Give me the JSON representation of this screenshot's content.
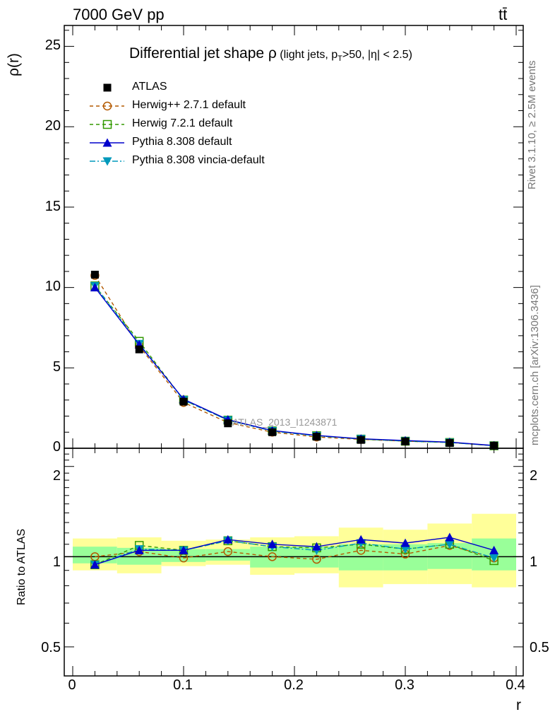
{
  "header": {
    "energy": "7000 GeV pp",
    "process": "tt̄"
  },
  "side_text": {
    "rivet": "Rivet 3.1.10, ≥ 2.5M events",
    "site": "mcplots.cern.ch [arXiv:1306.3436]"
  },
  "chart_data": [
    {
      "type": "line",
      "panel": "main",
      "title_main": "Differential jet shape ρ",
      "title_sub": "(light jets, p",
      "title_sub_T": "T",
      "title_sub_rest": ">50, |η| < 2.5)",
      "ylabel": "ρ(r)",
      "watermark": "ATLAS_2013_I1243871",
      "xlim": [
        0,
        0.4
      ],
      "ylim": [
        0,
        26.3
      ],
      "yticks": [
        0,
        5,
        10,
        15,
        20,
        25
      ],
      "x": [
        0.02,
        0.06,
        0.1,
        0.14,
        0.18,
        0.22,
        0.26,
        0.3,
        0.34,
        0.38
      ],
      "series": [
        {
          "name": "ATLAS",
          "marker": "square-filled",
          "color": "#000000",
          "line": "none",
          "values": [
            10.8,
            6.15,
            2.9,
            1.55,
            1.0,
            0.72,
            0.52,
            0.43,
            0.33,
            0.16
          ]
        },
        {
          "name": "Herwig++ 2.7.1 default",
          "marker": "circle-open",
          "color": "#b35900",
          "line": "dashed",
          "values": [
            10.75,
            6.35,
            2.85,
            1.6,
            1.0,
            0.7,
            0.55,
            0.44,
            0.37,
            0.16
          ]
        },
        {
          "name": "Herwig 7.2.1 default",
          "marker": "square-open",
          "color": "#339900",
          "line": "dashed",
          "values": [
            10.1,
            6.65,
            3.0,
            1.75,
            1.08,
            0.78,
            0.57,
            0.44,
            0.36,
            0.155
          ]
        },
        {
          "name": "Pythia 8.308 default",
          "marker": "triangle-up",
          "color": "#0000cc",
          "line": "solid",
          "values": [
            10.0,
            6.45,
            3.05,
            1.78,
            1.1,
            0.8,
            0.59,
            0.48,
            0.38,
            0.17
          ]
        },
        {
          "name": "Pythia 8.308 vincia-default",
          "marker": "triangle-down",
          "color": "#0099bb",
          "line": "dashdot",
          "values": [
            10.1,
            6.5,
            3.0,
            1.75,
            1.07,
            0.77,
            0.58,
            0.45,
            0.36,
            0.16
          ]
        }
      ]
    },
    {
      "type": "line",
      "panel": "ratio",
      "ylabel": "Ratio to ATLAS",
      "xlabel": "r",
      "xlim": [
        0,
        0.4
      ],
      "ylim": [
        0.4,
        2.3
      ],
      "yticks": [
        0.5,
        1,
        2
      ],
      "xticks": [
        0,
        0.1,
        0.2,
        0.3,
        0.4
      ],
      "x": [
        0.02,
        0.06,
        0.1,
        0.14,
        0.18,
        0.22,
        0.26,
        0.3,
        0.34,
        0.38
      ],
      "bin_edges": [
        0,
        0.04,
        0.08,
        0.12,
        0.16,
        0.2,
        0.24,
        0.28,
        0.32,
        0.36,
        0.4
      ],
      "band_inner": [
        [
          0.95,
          1.08
        ],
        [
          0.94,
          1.07
        ],
        [
          0.96,
          1.06
        ],
        [
          0.97,
          1.06
        ],
        [
          0.92,
          1.08
        ],
        [
          0.92,
          1.08
        ],
        [
          0.9,
          1.1
        ],
        [
          0.9,
          1.1
        ],
        [
          0.91,
          1.11
        ],
        [
          0.9,
          1.15
        ]
      ],
      "band_outer": [
        [
          0.9,
          1.15
        ],
        [
          0.88,
          1.16
        ],
        [
          0.93,
          1.13
        ],
        [
          0.94,
          1.14
        ],
        [
          0.87,
          1.16
        ],
        [
          0.88,
          1.17
        ],
        [
          0.79,
          1.25
        ],
        [
          0.81,
          1.23
        ],
        [
          0.81,
          1.29
        ],
        [
          0.79,
          1.39
        ]
      ],
      "series": [
        {
          "name": "Herwig++ 2.7.1 default",
          "marker": "circle-open",
          "color": "#b35900",
          "line": "dashed",
          "values": [
            1.0,
            1.04,
            0.99,
            1.04,
            1.0,
            0.98,
            1.05,
            1.02,
            1.09,
            0.99
          ]
        },
        {
          "name": "Herwig 7.2.1 default",
          "marker": "square-open",
          "color": "#339900",
          "line": "dashed",
          "values": [
            0.94,
            1.09,
            1.05,
            1.13,
            1.08,
            1.07,
            1.1,
            1.06,
            1.1,
            0.97
          ]
        },
        {
          "name": "Pythia 8.308 default",
          "marker": "triangle-up",
          "color": "#0000cc",
          "line": "solid",
          "values": [
            0.94,
            1.05,
            1.05,
            1.14,
            1.1,
            1.08,
            1.14,
            1.11,
            1.16,
            1.05
          ]
        },
        {
          "name": "Pythia 8.308 vincia-default",
          "marker": "triangle-down",
          "color": "#0099bb",
          "line": "dashdot",
          "values": [
            0.94,
            1.06,
            1.05,
            1.13,
            1.08,
            1.05,
            1.11,
            1.06,
            1.1,
            0.99
          ]
        }
      ]
    }
  ],
  "colors": {
    "band_inner": "#99ff99",
    "band_outer": "#ffff99",
    "axis": "#000000",
    "watermark": "#999999",
    "side_text": "#777777"
  }
}
